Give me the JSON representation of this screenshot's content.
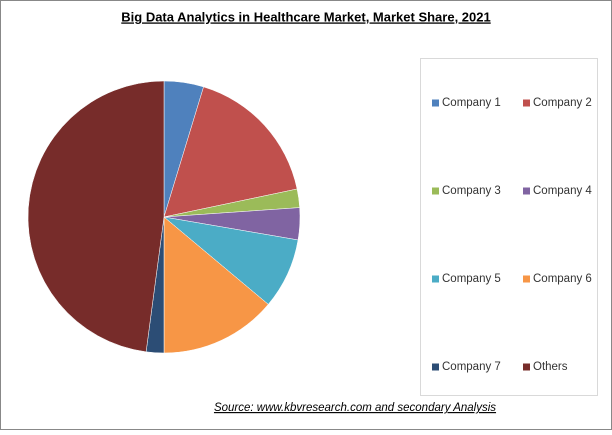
{
  "chart_data": {
    "type": "pie",
    "title": "Big Data Analytics in Healthcare Market, Market Share, 2021",
    "source": "Source:  www.kbvresearch.com  and secondary Analysis",
    "categories": [
      "Company 1",
      "Company 2",
      "Company 3",
      "Company 4",
      "Company 5",
      "Company 6",
      "Company 7",
      "Others"
    ],
    "values": [
      4.7,
      17,
      2.2,
      3.8,
      8.4,
      13.9,
      2.1,
      47.9
    ],
    "colors": [
      "#4f81bd",
      "#c0504d",
      "#9bbb59",
      "#8064a2",
      "#4bacc6",
      "#f79646",
      "#2c4d75",
      "#772c2a"
    ],
    "legend": "right"
  }
}
